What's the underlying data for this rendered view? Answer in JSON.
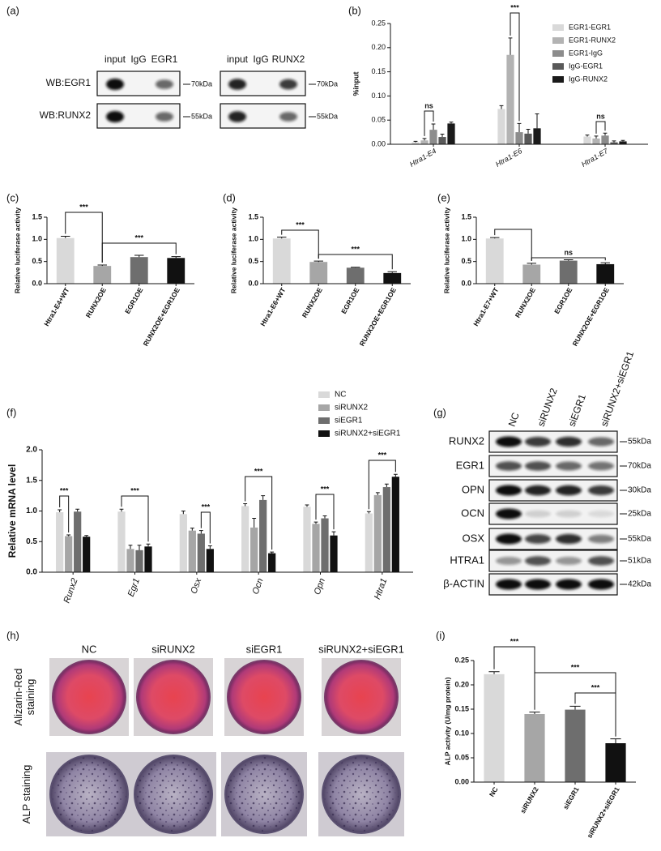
{
  "chart_data": [
    {
      "panel": "(b)",
      "type": "bar",
      "y_label": "%input",
      "categories": [
        "Htra1-E4",
        "Htra1-E6",
        "Htra1-E7"
      ],
      "series": [
        {
          "name": "EGR1-EGR1",
          "color": "#d9d9d9",
          "values": [
            0.004,
            0.073,
            0.016
          ],
          "errors": [
            0.002,
            0.007,
            0.003
          ]
        },
        {
          "name": "EGR1-RUNX2",
          "color": "#b3b3b3",
          "values": [
            0.008,
            0.185,
            0.012
          ],
          "errors": [
            0.004,
            0.035,
            0.005
          ]
        },
        {
          "name": "EGR1-IgG",
          "color": "#8c8c8c",
          "values": [
            0.03,
            0.025,
            0.018
          ],
          "errors": [
            0.012,
            0.018,
            0.005
          ]
        },
        {
          "name": "IgG-EGR1",
          "color": "#595959",
          "values": [
            0.015,
            0.022,
            0.004
          ],
          "errors": [
            0.006,
            0.009,
            0.003
          ]
        },
        {
          "name": "IgG-RUNX2",
          "color": "#1a1a1a",
          "values": [
            0.043,
            0.033,
            0.006
          ],
          "errors": [
            0.003,
            0.03,
            0.002
          ]
        }
      ],
      "ylim": [
        0,
        0.25
      ],
      "yticks": [
        {
          "value": 0,
          "label": "0.00"
        },
        0.05,
        {
          "value": 0.1,
          "label": "0.10"
        },
        0.15,
        {
          "value": 0.2,
          "label": "0.20"
        },
        0.25
      ],
      "annotations": [
        "ns",
        "***",
        "ns"
      ]
    },
    {
      "panel": "(c)",
      "type": "bar",
      "y_label": "Relative luciferase activity",
      "categories": [
        "Htra1-E4+WT",
        "RUNX2OE",
        "EGR1OE",
        "RUNX2OE+EGR1OE"
      ],
      "values": [
        1.03,
        0.4,
        0.6,
        0.58
      ],
      "errors": [
        0.04,
        0.02,
        0.04,
        0.03
      ],
      "colors": [
        "#d9d9d9",
        "#a6a6a6",
        "#6e6e6e",
        "#111111"
      ],
      "ylim": [
        0,
        1.5
      ],
      "yticks": [
        {
          "value": 0,
          "label": "0.0"
        },
        0.5,
        {
          "value": 1,
          "label": "1.0"
        },
        1.5
      ],
      "annotations": [
        "***",
        "***"
      ]
    },
    {
      "panel": "(d)",
      "type": "bar",
      "y_label": "Relative luciferase activity",
      "categories": [
        "Htra1-E6+WT",
        "RUNX2OE",
        "EGR1OE",
        "RUNX2OE+EGR1OE"
      ],
      "values": [
        1.02,
        0.49,
        0.36,
        0.24
      ],
      "errors": [
        0.03,
        0.02,
        0.01,
        0.03
      ],
      "colors": [
        "#d9d9d9",
        "#a6a6a6",
        "#6e6e6e",
        "#111111"
      ],
      "ylim": [
        0,
        1.5
      ],
      "yticks": [
        {
          "value": 0,
          "label": "0.0"
        },
        0.5,
        {
          "value": 1,
          "label": "1.0"
        },
        1.5
      ],
      "annotations": [
        "***",
        "***"
      ]
    },
    {
      "panel": "(e)",
      "type": "bar",
      "y_label": "Relative luciferase activity",
      "categories": [
        "Htra1-E7+WT",
        "RUNX2OE",
        "EGR1OE",
        "RUNX2OE+EGR1OE"
      ],
      "values": [
        1.02,
        0.43,
        0.52,
        0.44
      ],
      "errors": [
        0.02,
        0.03,
        0.02,
        0.03
      ],
      "colors": [
        "#d9d9d9",
        "#a6a6a6",
        "#6e6e6e",
        "#111111"
      ],
      "ylim": [
        0,
        1.5
      ],
      "yticks": [
        {
          "value": 0,
          "label": "0.0"
        },
        0.5,
        {
          "value": 1,
          "label": "1.0"
        },
        1.5
      ],
      "annotations": [
        "ns"
      ]
    },
    {
      "panel": "(f)",
      "type": "bar",
      "y_label": "Relative mRNA level",
      "categories": [
        "Runx2",
        "Egr1",
        "Osx",
        "Ocn",
        "Opn",
        "Htra1"
      ],
      "series": [
        {
          "name": "NC",
          "color": "#d9d9d9",
          "values": [
            0.98,
            0.99,
            0.95,
            1.08,
            1.07,
            0.96
          ],
          "errors": [
            0.04,
            0.04,
            0.05,
            0.04,
            0.03,
            0.03
          ]
        },
        {
          "name": "siRUNX2",
          "color": "#a6a6a6",
          "values": [
            0.59,
            0.38,
            0.68,
            0.73,
            0.79,
            1.26
          ],
          "errors": [
            0.02,
            0.06,
            0.04,
            0.15,
            0.03,
            0.04
          ]
        },
        {
          "name": "siEGR1",
          "color": "#6e6e6e",
          "values": [
            0.99,
            0.36,
            0.63,
            1.18,
            0.88,
            1.39
          ],
          "errors": [
            0.04,
            0.08,
            0.05,
            0.07,
            0.04,
            0.05
          ]
        },
        {
          "name": "siRUNX2+siEGR1",
          "color": "#111111",
          "values": [
            0.58,
            0.42,
            0.38,
            0.31,
            0.6,
            1.56
          ],
          "errors": [
            0.02,
            0.04,
            0.05,
            0.02,
            0.06,
            0.04
          ]
        }
      ],
      "ylim": [
        0,
        2
      ],
      "yticks": [
        {
          "value": 0,
          "label": "0.0"
        },
        0.5,
        {
          "value": 1,
          "label": "1.0"
        },
        1.5,
        {
          "value": 2,
          "label": "2.0"
        }
      ],
      "annotations": [
        "***",
        "***",
        "***",
        "***",
        "***",
        "***"
      ]
    },
    {
      "panel": "(i)",
      "type": "bar",
      "y_label": "ALP activity (U/mg protein)",
      "categories": [
        "NC",
        "siRUNX2",
        "siEGR1",
        "siRUNX2+siEGR1"
      ],
      "values": [
        0.222,
        0.14,
        0.149,
        0.08
      ],
      "errors": [
        0.005,
        0.004,
        0.007,
        0.009
      ],
      "colors": [
        "#d9d9d9",
        "#a6a6a6",
        "#6e6e6e",
        "#111111"
      ],
      "ylim": [
        0,
        0.25
      ],
      "yticks": [
        {
          "value": 0,
          "label": "0.00"
        },
        0.05,
        {
          "value": 0.1,
          "label": "0.10"
        },
        0.15,
        {
          "value": 0.2,
          "label": "0.20"
        },
        0.25
      ],
      "annotations": [
        "***",
        "***",
        "***"
      ]
    }
  ],
  "panel_a": {
    "panel": "(a)",
    "row_labels": [
      "WB:EGR1",
      "WB:RUNX2"
    ],
    "blots": [
      {
        "lanes": [
          "input",
          "IgG",
          "EGR1"
        ],
        "markers": [
          "70kDa",
          "55kDa"
        ]
      },
      {
        "lanes": [
          "input",
          "IgG",
          "RUNX2"
        ],
        "markers": [
          "70kDa",
          "55kDa"
        ]
      }
    ]
  },
  "panel_g": {
    "panel": "(g)",
    "lanes": [
      "NC",
      "siRUNX2",
      "siEGR1",
      "siRUNX2+siEGR1"
    ],
    "rows": [
      {
        "protein": "RUNX2",
        "marker": "55kDa"
      },
      {
        "protein": "EGR1",
        "marker": "70kDa"
      },
      {
        "protein": "OPN",
        "marker": "30kDa"
      },
      {
        "protein": "OCN",
        "marker": "25kDa"
      },
      {
        "protein": "OSX",
        "marker": "55kDa"
      },
      {
        "protein": "HTRA1",
        "marker": "51kDa"
      },
      {
        "protein": "β-ACTIN",
        "marker": "42kDa"
      }
    ]
  },
  "panel_h": {
    "panel": "(h)",
    "columns": [
      "NC",
      "siRUNX2",
      "siEGR1",
      "siRUNX2+siEGR1"
    ],
    "rows": [
      "Alizarin-Red staining",
      "ALP staining"
    ]
  }
}
